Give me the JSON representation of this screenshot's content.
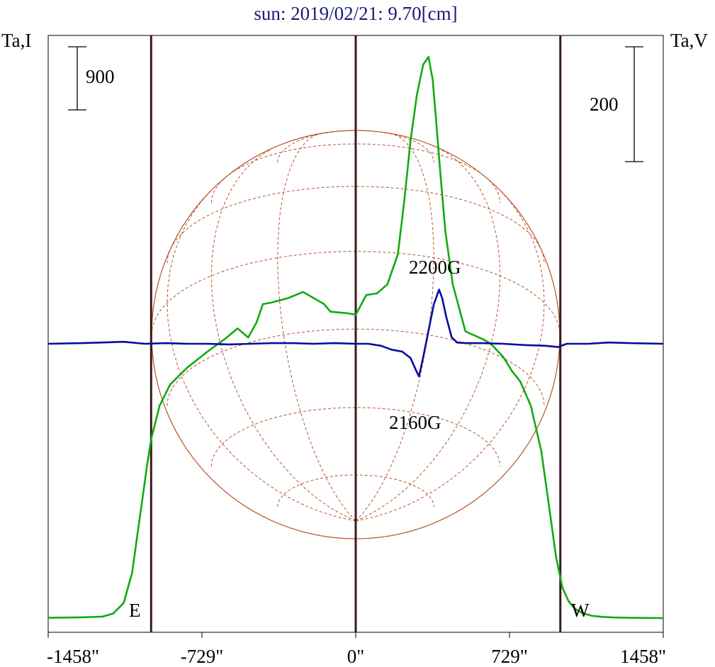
{
  "chart_data": {
    "type": "line",
    "title": "sun: 2019/02/21: 9.70[cm]",
    "ylabel_left": "Ta,I",
    "ylabel_right": "Ta,V",
    "xlim": [
      -1458,
      1458
    ],
    "x_ticks": [
      -1458,
      -729,
      0,
      729,
      1458
    ],
    "x_tick_labels": [
      "-1458\"",
      "-729\"",
      "0\"",
      "729\"",
      "1458\""
    ],
    "scale_left": "900",
    "scale_right": "200",
    "limb_lines_arcsec": [
      -970,
      0,
      970
    ],
    "limb_labels": {
      "east": "E",
      "west": "W"
    },
    "annotations": {
      "positive_peak": "2200G",
      "negative_peak": "2160G"
    },
    "colors": {
      "intensity": "#11aa11",
      "polarization": "#0a0aa0",
      "grid": "#b5552a",
      "limb": "#3b1a1a",
      "title": "#1a1a7a"
    },
    "grid": true,
    "series": [
      {
        "quantity": "I",
        "color": "#11aa11",
        "x": [
          -1458,
          -1300,
          -1200,
          -1150,
          -1100,
          -1060,
          -1030,
          -1010,
          -990,
          -970,
          -930,
          -880,
          -800,
          -700,
          -620,
          -560,
          -510,
          -470,
          -440,
          -400,
          -320,
          -250,
          -150,
          -120,
          -40,
          0,
          50,
          100,
          150,
          200,
          230,
          260,
          290,
          320,
          345,
          365,
          380,
          400,
          425,
          460,
          520,
          600,
          640,
          700,
          740,
          780,
          830,
          880,
          920,
          950,
          980,
          1010,
          1040,
          1080,
          1120,
          1170,
          1220,
          1300,
          1458
        ],
        "y": [
          2,
          5,
          10,
          30,
          100,
          300,
          600,
          800,
          1000,
          1180,
          1400,
          1540,
          1650,
          1760,
          1840,
          1910,
          1850,
          1950,
          2070,
          2080,
          2110,
          2150,
          2070,
          2020,
          2010,
          2000,
          2130,
          2140,
          2200,
          2400,
          2750,
          3150,
          3450,
          3650,
          3700,
          3550,
          3300,
          2950,
          2550,
          2200,
          1890,
          1840,
          1810,
          1720,
          1630,
          1560,
          1400,
          1100,
          700,
          400,
          200,
          110,
          60,
          30,
          15,
          8,
          4,
          2,
          0
        ]
      },
      {
        "quantity": "V",
        "color": "#0a0aa0",
        "x": [
          -1458,
          -1300,
          -1200,
          -1100,
          -1000,
          -900,
          -800,
          -700,
          -600,
          -500,
          -400,
          -300,
          -200,
          -100,
          0,
          60,
          120,
          170,
          220,
          260,
          285,
          300,
          320,
          345,
          370,
          395,
          410,
          430,
          455,
          480,
          520,
          600,
          700,
          800,
          900,
          960,
          1000,
          1100,
          1200,
          1300,
          1458
        ],
        "y": [
          0,
          1,
          2,
          3,
          0,
          1,
          0,
          0,
          -1,
          0,
          1,
          1,
          0,
          1,
          0,
          0,
          -3,
          -9,
          -12,
          -22,
          -40,
          -50,
          -20,
          20,
          60,
          83,
          70,
          40,
          10,
          2,
          1,
          1,
          0,
          -2,
          -3,
          -5,
          0,
          0,
          2,
          1,
          0
        ]
      }
    ]
  }
}
